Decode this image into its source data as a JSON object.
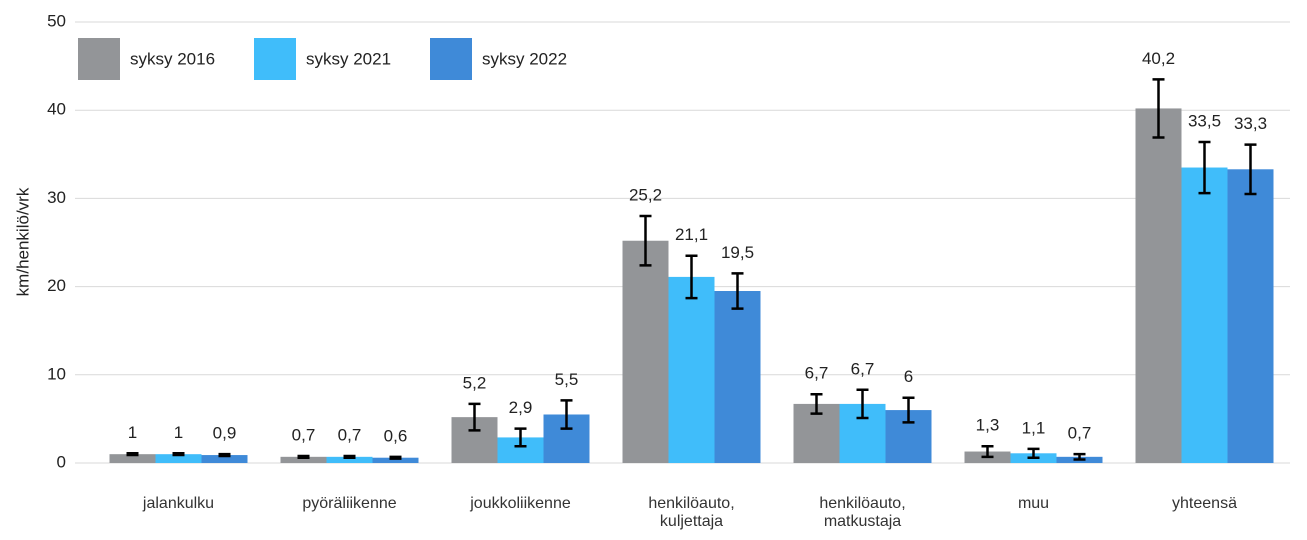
{
  "chart_data": {
    "type": "bar",
    "ylabel": "km/henkilö/vrk",
    "categories": [
      "jalankulku",
      "pyöräliikenne",
      "joukkoliikenne",
      "henkilöauto, kuljettaja",
      "henkilöauto, matkustaja",
      "muu",
      "yhteensä"
    ],
    "series": [
      {
        "name": "syksy 2016",
        "color": "#939598",
        "values": [
          1,
          0.7,
          5.2,
          25.2,
          6.7,
          1.3,
          40.2
        ],
        "value_labels": [
          "1",
          "0,7",
          "5,2",
          "25,2",
          "6,7",
          "1,3",
          "40,2"
        ],
        "errors": [
          0.1,
          0.1,
          1.5,
          2.8,
          1.1,
          0.6,
          3.3
        ]
      },
      {
        "name": "syksy 2021",
        "color": "#40bdfa",
        "values": [
          1,
          0.7,
          2.9,
          21.1,
          6.7,
          1.1,
          33.5
        ],
        "value_labels": [
          "1",
          "0,7",
          "2,9",
          "21,1",
          "6,7",
          "1,1",
          "33,5"
        ],
        "errors": [
          0.1,
          0.1,
          1.0,
          2.4,
          1.6,
          0.5,
          2.9
        ]
      },
      {
        "name": "syksy 2022",
        "color": "#3f8ad8",
        "values": [
          0.9,
          0.6,
          5.5,
          19.5,
          6,
          0.7,
          33.3
        ],
        "value_labels": [
          "0,9",
          "0,6",
          "5,5",
          "19,5",
          "6",
          "0,7",
          "33,3"
        ],
        "errors": [
          0.1,
          0.1,
          1.6,
          2.0,
          1.4,
          0.3,
          2.8
        ]
      }
    ],
    "ylim": [
      0,
      50
    ],
    "yticks": [
      0,
      10,
      20,
      30,
      40,
      50
    ],
    "grid": true,
    "legend": "upper left"
  }
}
